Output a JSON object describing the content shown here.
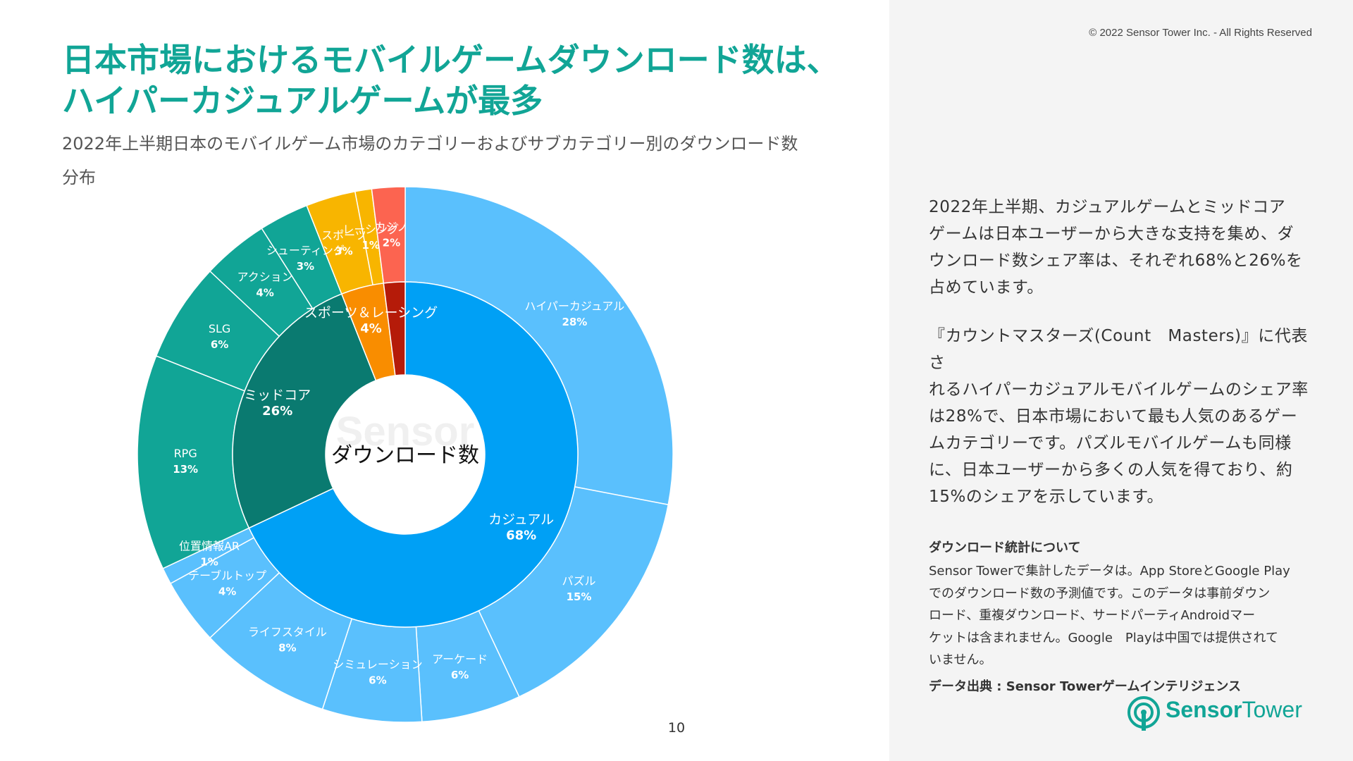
{
  "copyright": "© 2022 Sensor Tower Inc. - All Rights Reserved",
  "title_lines": [
    "日本市場におけるモバイルゲームダウンロード数は、",
    "ハイパーカジュアルゲームが最多"
  ],
  "subtitle_lines": [
    "2022年上半期日本のモバイルゲーム市場のカテゴリーおよびサブカテゴリー別のダウンロード数",
    "分布"
  ],
  "page_number": "10",
  "paragraphs": [
    {
      "lines": [
        "2022年上半期、カジュアルゲームとミッドコア",
        "ゲームは日本ユーザーから大きな支持を集め、ダ",
        "ウンロード数シェア率は、それぞれ68%と26%を",
        "占めています。"
      ]
    },
    {
      "lines": [
        "『カウントマスターズ(Count　Masters)』に代表さ",
        "れるハイパーカジュアルモバイルゲームのシェア率",
        "は28%で、日本市場において最も人気のあるゲー",
        "ムカテゴリーです。パズルモバイルゲームも同様",
        "に、日本ユーザーから多くの人気を得ており、約",
        "15%のシェアを示しています。"
      ]
    }
  ],
  "note": {
    "heading": "ダウンロード統計について",
    "lines": [
      "Sensor Towerで集計したデータは。App StoreとGoogle Play",
      "でのダウンロード数の予測値です。このデータは事前ダウン",
      "ロード、重複ダウンロード、サードパーティAndroidマー",
      "ケットは含まれません。Google　Playは中国では提供されて",
      "いません。"
    ],
    "source": "データ出典 : Sensor Towerゲームインテリジェンス"
  },
  "logo": {
    "word1": "Sensor",
    "word2": "Tower",
    "color": "#11a596"
  },
  "watermark": "Sensor",
  "chart_data": {
    "type": "sunburst",
    "center_label": "ダウンロード数",
    "inner": [
      {
        "name": "カジュアル",
        "value": 68,
        "label": "68%",
        "color": "#00a0f5"
      },
      {
        "name": "ミッドコア",
        "value": 26,
        "label": "26%",
        "color": "#0a7a70"
      },
      {
        "name": "スポーツ＆レーシング",
        "value": 4,
        "label": "4%",
        "color": "#f98d00"
      },
      {
        "name": "",
        "value": 2,
        "label": "",
        "color": "#b51b09"
      }
    ],
    "outer": [
      {
        "name": "ハイパーカジュアル",
        "value": 28,
        "label": "28%",
        "parent": "カジュアル",
        "color": "#5ac0fd"
      },
      {
        "name": "パズル",
        "value": 15,
        "label": "15%",
        "parent": "カジュアル",
        "color": "#5ac0fd"
      },
      {
        "name": "アーケード",
        "value": 6,
        "label": "6%",
        "parent": "カジュアル",
        "color": "#5ac0fd"
      },
      {
        "name": "シミュレーション",
        "value": 6,
        "label": "6%",
        "parent": "カジュアル",
        "color": "#5ac0fd"
      },
      {
        "name": "ライフスタイル",
        "value": 8,
        "label": "8%",
        "parent": "カジュアル",
        "color": "#5ac0fd"
      },
      {
        "name": "テーブルトップ",
        "value": 4,
        "label": "4%",
        "parent": "カジュアル",
        "color": "#5ac0fd"
      },
      {
        "name": "位置情報AR",
        "value": 1,
        "label": "1%",
        "parent": "カジュアル",
        "color": "#5ac0fd"
      },
      {
        "name": "RPG",
        "value": 13,
        "label": "13%",
        "parent": "ミッドコア",
        "color": "#11a596"
      },
      {
        "name": "SLG",
        "value": 6,
        "label": "6%",
        "parent": "ミッドコア",
        "color": "#11a596"
      },
      {
        "name": "アクション",
        "value": 4,
        "label": "4%",
        "parent": "ミッドコア",
        "color": "#11a596"
      },
      {
        "name": "シューティング",
        "value": 3,
        "label": "3%",
        "parent": "ミッドコア",
        "color": "#11a596"
      },
      {
        "name": "スポーツ",
        "value": 3,
        "label": "3%",
        "parent": "スポーツ＆レーシング",
        "color": "#f8b500"
      },
      {
        "name": "レーシング",
        "value": 1,
        "label": "1%",
        "parent": "スポーツ＆レーシング",
        "color": "#f8b500"
      },
      {
        "name": "カジノ",
        "value": 2,
        "label": "2%",
        "color": "#fc6450"
      }
    ]
  }
}
